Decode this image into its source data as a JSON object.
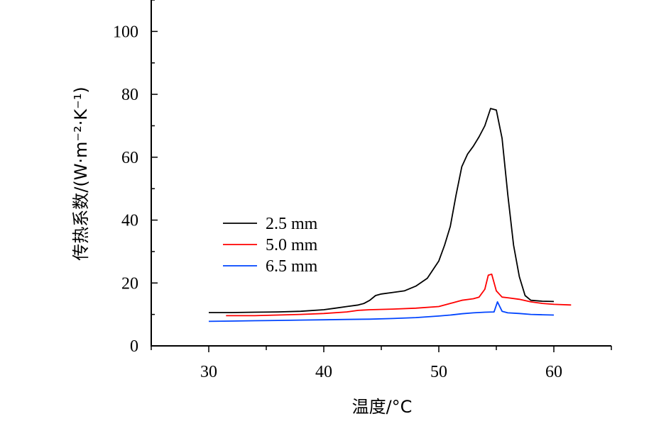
{
  "chart_data": {
    "type": "line",
    "xlabel": "温度/°C",
    "ylabel": "传热系数/(W·m⁻²·K⁻¹)",
    "xlim": [
      25,
      65
    ],
    "ylim": [
      0,
      110
    ],
    "xticks": [
      30,
      40,
      50,
      60
    ],
    "yticks": [
      0,
      20,
      40,
      60,
      80,
      100
    ],
    "grid": false,
    "legend_position": "center-left",
    "series": [
      {
        "name": "2.5 mm",
        "color": "#000000",
        "x": [
          30,
          32,
          34,
          36,
          38,
          40,
          41,
          42,
          43,
          43.5,
          44,
          44.5,
          45,
          46,
          47,
          48,
          49,
          50,
          50.5,
          51,
          51.5,
          52,
          52.5,
          53,
          53.5,
          54,
          54.5,
          55,
          55.5,
          56,
          56.5,
          57,
          57.5,
          58,
          59,
          60
        ],
        "y": [
          10.6,
          10.6,
          10.7,
          10.8,
          11.0,
          11.5,
          12.0,
          12.5,
          13.0,
          13.5,
          14.5,
          16.0,
          16.5,
          17.0,
          17.5,
          19.0,
          21.5,
          27.0,
          32.0,
          38.0,
          48.0,
          57.0,
          61.0,
          63.5,
          66.5,
          70.0,
          75.5,
          75.0,
          66.0,
          48.0,
          32.0,
          22.0,
          16.0,
          14.5,
          14.2,
          14.1
        ]
      },
      {
        "name": "5.0 mm",
        "color": "#ff0000",
        "x": [
          31.5,
          34,
          36,
          38,
          40,
          42,
          43,
          44,
          46,
          48,
          50,
          51,
          52,
          53,
          53.5,
          54,
          54.3,
          54.6,
          55,
          55.5,
          56,
          57,
          58,
          59,
          60,
          61.5
        ],
        "y": [
          9.6,
          9.6,
          9.8,
          10.0,
          10.3,
          10.8,
          11.3,
          11.5,
          11.7,
          12.0,
          12.5,
          13.5,
          14.5,
          15.0,
          15.5,
          18.0,
          22.5,
          22.8,
          17.5,
          15.5,
          15.3,
          14.8,
          14.0,
          13.5,
          13.2,
          13.0
        ]
      },
      {
        "name": "6.5 mm",
        "color": "#0044ff",
        "x": [
          30,
          32,
          34,
          36,
          38,
          40,
          42,
          44,
          46,
          48,
          50,
          51,
          52,
          53,
          54,
          54.8,
          55.1,
          55.5,
          56,
          57,
          58,
          59,
          60
        ],
        "y": [
          7.8,
          7.9,
          8.0,
          8.1,
          8.2,
          8.3,
          8.4,
          8.5,
          8.7,
          9.0,
          9.5,
          9.8,
          10.2,
          10.5,
          10.7,
          10.8,
          14.0,
          11.0,
          10.5,
          10.3,
          10.0,
          9.9,
          9.8
        ]
      }
    ]
  }
}
